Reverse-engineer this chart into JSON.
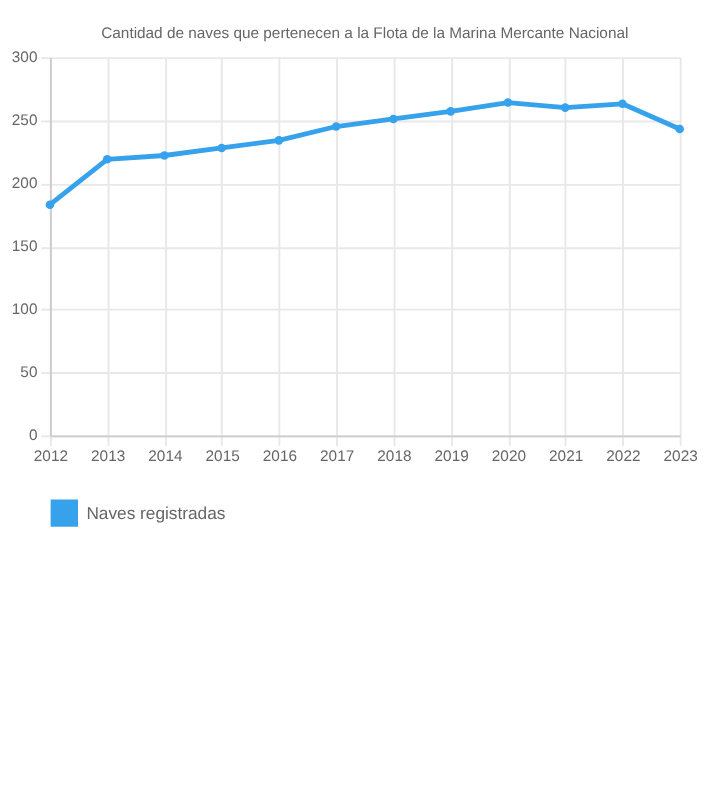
{
  "chart_data": {
    "type": "line",
    "title": "Cantidad de naves que pertenecen a la Flota de la Marina Mercante Nacional",
    "categories": [
      "2012",
      "2013",
      "2014",
      "2015",
      "2016",
      "2017",
      "2018",
      "2019",
      "2020",
      "2021",
      "2022",
      "2023"
    ],
    "series": [
      {
        "name": "Naves registradas",
        "color": "#36a2eb",
        "values": [
          183,
          219,
          222,
          228,
          234,
          245,
          251,
          257,
          264,
          260,
          263,
          243
        ]
      }
    ],
    "ylim": [
      0,
      300
    ],
    "yticks": [
      0,
      50,
      100,
      150,
      200,
      250,
      300
    ],
    "grid": true,
    "legend": "bottom",
    "marker": "circle",
    "line_style": "solid"
  }
}
